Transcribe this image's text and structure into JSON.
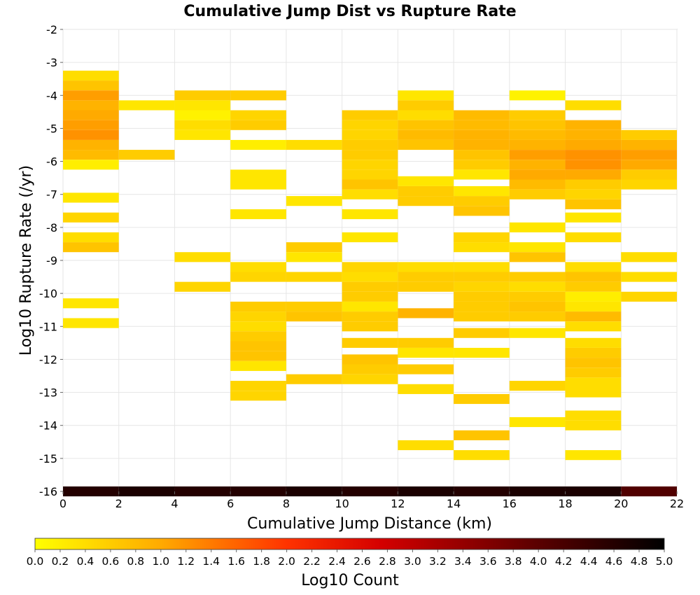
{
  "chart_data": {
    "type": "heatmap",
    "title": "Cumulative Jump Dist vs Rupture Rate",
    "xlabel": "Cumulative Jump Distance (km)",
    "ylabel": "Log10 Rupture Rate (/yr)",
    "xlim": [
      0,
      22
    ],
    "ylim": [
      -16,
      -2
    ],
    "x_ticks": [
      "0",
      "2",
      "4",
      "6",
      "8",
      "10",
      "12",
      "14",
      "16",
      "18",
      "20",
      "22"
    ],
    "y_ticks": [
      "-2",
      "-3",
      "-4",
      "-5",
      "-6",
      "-7",
      "-8",
      "-9",
      "-10",
      "-11",
      "-12",
      "-13",
      "-14",
      "-15",
      "-16"
    ],
    "x_bin_width": 2,
    "y_bin_height": 0.3,
    "grid": true,
    "colorbar": {
      "label": "Log10 Count",
      "range": [
        0,
        5
      ],
      "ticks": [
        "0.0",
        "0.2",
        "0.4",
        "0.6",
        "0.8",
        "1.0",
        "1.2",
        "1.4",
        "1.6",
        "1.8",
        "2.0",
        "2.2",
        "2.4",
        "2.6",
        "2.8",
        "3.0",
        "3.2",
        "3.4",
        "3.6",
        "3.8",
        "4.0",
        "4.2",
        "4.4",
        "4.6",
        "4.8",
        "5.0"
      ],
      "colors": [
        "#ffff00",
        "#ffaa00",
        "#ff3300",
        "#d40000",
        "#5a0000",
        "#000000"
      ]
    },
    "cells": [
      {
        "x": 0,
        "y": -3.4,
        "v": 0.4
      },
      {
        "x": 0,
        "y": -3.7,
        "v": 0.7
      },
      {
        "x": 0,
        "y": -4.0,
        "v": 1.1
      },
      {
        "x": 0,
        "y": -4.3,
        "v": 0.9
      },
      {
        "x": 0,
        "y": -4.6,
        "v": 1.0
      },
      {
        "x": 0,
        "y": -4.9,
        "v": 1.1
      },
      {
        "x": 0,
        "y": -5.2,
        "v": 1.2
      },
      {
        "x": 0,
        "y": -5.5,
        "v": 0.9
      },
      {
        "x": 0,
        "y": -5.8,
        "v": 0.8
      },
      {
        "x": 0,
        "y": -6.1,
        "v": 0.2
      },
      {
        "x": 0,
        "y": -7.1,
        "v": 0.3
      },
      {
        "x": 0,
        "y": -7.7,
        "v": 0.5
      },
      {
        "x": 0,
        "y": -8.3,
        "v": 0.4
      },
      {
        "x": 0,
        "y": -8.6,
        "v": 0.7
      },
      {
        "x": 0,
        "y": -10.3,
        "v": 0.3
      },
      {
        "x": 0,
        "y": -10.9,
        "v": 0.3
      },
      {
        "x": 2,
        "y": -4.3,
        "v": 0.3
      },
      {
        "x": 2,
        "y": -5.8,
        "v": 0.6
      },
      {
        "x": 4,
        "y": -4.0,
        "v": 0.6
      },
      {
        "x": 4,
        "y": -4.3,
        "v": 0.3
      },
      {
        "x": 4,
        "y": -4.6,
        "v": 0.15
      },
      {
        "x": 4,
        "y": -4.9,
        "v": 0.4
      },
      {
        "x": 4,
        "y": -5.2,
        "v": 0.3
      },
      {
        "x": 4,
        "y": -8.9,
        "v": 0.4
      },
      {
        "x": 4,
        "y": -9.8,
        "v": 0.5
      },
      {
        "x": 6,
        "y": -4.0,
        "v": 0.6
      },
      {
        "x": 6,
        "y": -4.6,
        "v": 0.5
      },
      {
        "x": 6,
        "y": -4.9,
        "v": 0.6
      },
      {
        "x": 6,
        "y": -5.5,
        "v": 0.2
      },
      {
        "x": 6,
        "y": -6.4,
        "v": 0.3
      },
      {
        "x": 6,
        "y": -6.7,
        "v": 0.3
      },
      {
        "x": 6,
        "y": -7.6,
        "v": 0.3
      },
      {
        "x": 6,
        "y": -9.2,
        "v": 0.4
      },
      {
        "x": 6,
        "y": -9.5,
        "v": 0.5
      },
      {
        "x": 6,
        "y": -10.4,
        "v": 0.6
      },
      {
        "x": 6,
        "y": -10.7,
        "v": 0.5
      },
      {
        "x": 6,
        "y": -11.0,
        "v": 0.4
      },
      {
        "x": 6,
        "y": -11.3,
        "v": 0.6
      },
      {
        "x": 6,
        "y": -11.6,
        "v": 0.7
      },
      {
        "x": 6,
        "y": -11.9,
        "v": 0.7
      },
      {
        "x": 6,
        "y": -12.2,
        "v": 0.3
      },
      {
        "x": 6,
        "y": -12.8,
        "v": 0.5
      },
      {
        "x": 6,
        "y": -13.1,
        "v": 0.5
      },
      {
        "x": 8,
        "y": -5.5,
        "v": 0.4
      },
      {
        "x": 8,
        "y": -7.2,
        "v": 0.3
      },
      {
        "x": 8,
        "y": -8.6,
        "v": 0.6
      },
      {
        "x": 8,
        "y": -8.9,
        "v": 0.3
      },
      {
        "x": 8,
        "y": -9.5,
        "v": 0.5
      },
      {
        "x": 8,
        "y": -10.4,
        "v": 0.6
      },
      {
        "x": 8,
        "y": -10.7,
        "v": 0.7
      },
      {
        "x": 8,
        "y": -12.6,
        "v": 0.6
      },
      {
        "x": 10,
        "y": -4.6,
        "v": 0.6
      },
      {
        "x": 10,
        "y": -4.9,
        "v": 0.5
      },
      {
        "x": 10,
        "y": -5.2,
        "v": 0.5
      },
      {
        "x": 10,
        "y": -5.5,
        "v": 0.6
      },
      {
        "x": 10,
        "y": -5.8,
        "v": 0.6
      },
      {
        "x": 10,
        "y": -6.1,
        "v": 0.5
      },
      {
        "x": 10,
        "y": -6.4,
        "v": 0.5
      },
      {
        "x": 10,
        "y": -6.7,
        "v": 0.7
      },
      {
        "x": 10,
        "y": -7.0,
        "v": 0.4
      },
      {
        "x": 10,
        "y": -7.6,
        "v": 0.3
      },
      {
        "x": 10,
        "y": -8.3,
        "v": 0.3
      },
      {
        "x": 10,
        "y": -9.2,
        "v": 0.5
      },
      {
        "x": 10,
        "y": -9.5,
        "v": 0.4
      },
      {
        "x": 10,
        "y": -9.8,
        "v": 0.6
      },
      {
        "x": 10,
        "y": -10.1,
        "v": 0.6
      },
      {
        "x": 10,
        "y": -10.4,
        "v": 0.3
      },
      {
        "x": 10,
        "y": -10.7,
        "v": 0.6
      },
      {
        "x": 10,
        "y": -11.0,
        "v": 0.6
      },
      {
        "x": 10,
        "y": -11.5,
        "v": 0.6
      },
      {
        "x": 10,
        "y": -12.0,
        "v": 0.7
      },
      {
        "x": 10,
        "y": -12.3,
        "v": 0.6
      },
      {
        "x": 10,
        "y": -12.6,
        "v": 0.5
      },
      {
        "x": 12,
        "y": -4.0,
        "v": 0.3
      },
      {
        "x": 12,
        "y": -4.3,
        "v": 0.6
      },
      {
        "x": 12,
        "y": -4.6,
        "v": 0.4
      },
      {
        "x": 12,
        "y": -4.9,
        "v": 0.7
      },
      {
        "x": 12,
        "y": -5.2,
        "v": 0.8
      },
      {
        "x": 12,
        "y": -5.5,
        "v": 0.7
      },
      {
        "x": 12,
        "y": -6.6,
        "v": 0.3
      },
      {
        "x": 12,
        "y": -6.9,
        "v": 0.6
      },
      {
        "x": 12,
        "y": -7.2,
        "v": 0.6
      },
      {
        "x": 12,
        "y": -9.2,
        "v": 0.4
      },
      {
        "x": 12,
        "y": -9.5,
        "v": 0.6
      },
      {
        "x": 12,
        "y": -9.8,
        "v": 0.6
      },
      {
        "x": 12,
        "y": -10.6,
        "v": 0.9
      },
      {
        "x": 12,
        "y": -11.5,
        "v": 0.6
      },
      {
        "x": 12,
        "y": -11.8,
        "v": 0.3
      },
      {
        "x": 12,
        "y": -12.3,
        "v": 0.6
      },
      {
        "x": 12,
        "y": -12.9,
        "v": 0.4
      },
      {
        "x": 12,
        "y": -14.6,
        "v": 0.4
      },
      {
        "x": 14,
        "y": -4.6,
        "v": 0.8
      },
      {
        "x": 14,
        "y": -4.9,
        "v": 0.8
      },
      {
        "x": 14,
        "y": -5.2,
        "v": 0.9
      },
      {
        "x": 14,
        "y": -5.5,
        "v": 0.9
      },
      {
        "x": 14,
        "y": -5.8,
        "v": 0.7
      },
      {
        "x": 14,
        "y": -6.1,
        "v": 0.6
      },
      {
        "x": 14,
        "y": -6.4,
        "v": 0.3
      },
      {
        "x": 14,
        "y": -6.9,
        "v": 0.3
      },
      {
        "x": 14,
        "y": -7.2,
        "v": 0.6
      },
      {
        "x": 14,
        "y": -7.5,
        "v": 0.7
      },
      {
        "x": 14,
        "y": -8.3,
        "v": 0.5
      },
      {
        "x": 14,
        "y": -8.6,
        "v": 0.4
      },
      {
        "x": 14,
        "y": -9.2,
        "v": 0.4
      },
      {
        "x": 14,
        "y": -9.5,
        "v": 0.6
      },
      {
        "x": 14,
        "y": -9.8,
        "v": 0.5
      },
      {
        "x": 14,
        "y": -10.1,
        "v": 0.6
      },
      {
        "x": 14,
        "y": -10.4,
        "v": 0.6
      },
      {
        "x": 14,
        "y": -10.7,
        "v": 0.6
      },
      {
        "x": 14,
        "y": -11.2,
        "v": 0.6
      },
      {
        "x": 14,
        "y": -11.8,
        "v": 0.3
      },
      {
        "x": 14,
        "y": -13.2,
        "v": 0.6
      },
      {
        "x": 14,
        "y": -14.3,
        "v": 0.7
      },
      {
        "x": 14,
        "y": -14.9,
        "v": 0.4
      },
      {
        "x": 16,
        "y": -4.0,
        "v": 0.15
      },
      {
        "x": 16,
        "y": -4.6,
        "v": 0.6
      },
      {
        "x": 16,
        "y": -4.9,
        "v": 0.7
      },
      {
        "x": 16,
        "y": -5.2,
        "v": 0.8
      },
      {
        "x": 16,
        "y": -5.5,
        "v": 0.9
      },
      {
        "x": 16,
        "y": -5.8,
        "v": 1.1
      },
      {
        "x": 16,
        "y": -6.1,
        "v": 0.9
      },
      {
        "x": 16,
        "y": -6.4,
        "v": 1.0
      },
      {
        "x": 16,
        "y": -6.7,
        "v": 0.8
      },
      {
        "x": 16,
        "y": -7.0,
        "v": 0.6
      },
      {
        "x": 16,
        "y": -8.0,
        "v": 0.3
      },
      {
        "x": 16,
        "y": -8.6,
        "v": 0.3
      },
      {
        "x": 16,
        "y": -8.9,
        "v": 0.7
      },
      {
        "x": 16,
        "y": -9.5,
        "v": 0.6
      },
      {
        "x": 16,
        "y": -9.8,
        "v": 0.4
      },
      {
        "x": 16,
        "y": -10.1,
        "v": 0.6
      },
      {
        "x": 16,
        "y": -10.4,
        "v": 0.7
      },
      {
        "x": 16,
        "y": -10.7,
        "v": 0.6
      },
      {
        "x": 16,
        "y": -11.2,
        "v": 0.3
      },
      {
        "x": 16,
        "y": -12.8,
        "v": 0.5
      },
      {
        "x": 16,
        "y": -13.9,
        "v": 0.3
      },
      {
        "x": 18,
        "y": -4.3,
        "v": 0.4
      },
      {
        "x": 18,
        "y": -4.9,
        "v": 0.9
      },
      {
        "x": 18,
        "y": -5.2,
        "v": 0.9
      },
      {
        "x": 18,
        "y": -5.5,
        "v": 1.0
      },
      {
        "x": 18,
        "y": -5.8,
        "v": 1.2
      },
      {
        "x": 18,
        "y": -6.1,
        "v": 1.2
      },
      {
        "x": 18,
        "y": -6.4,
        "v": 1.0
      },
      {
        "x": 18,
        "y": -6.7,
        "v": 0.6
      },
      {
        "x": 18,
        "y": -7.0,
        "v": 0.5
      },
      {
        "x": 18,
        "y": -7.3,
        "v": 0.7
      },
      {
        "x": 18,
        "y": -7.7,
        "v": 0.3
      },
      {
        "x": 18,
        "y": -8.3,
        "v": 0.4
      },
      {
        "x": 18,
        "y": -9.2,
        "v": 0.4
      },
      {
        "x": 18,
        "y": -9.5,
        "v": 0.7
      },
      {
        "x": 18,
        "y": -9.8,
        "v": 0.6
      },
      {
        "x": 18,
        "y": -10.1,
        "v": 0.2
      },
      {
        "x": 18,
        "y": -10.4,
        "v": 0.3
      },
      {
        "x": 18,
        "y": -10.7,
        "v": 0.8
      },
      {
        "x": 18,
        "y": -11.0,
        "v": 0.4
      },
      {
        "x": 18,
        "y": -11.5,
        "v": 0.4
      },
      {
        "x": 18,
        "y": -11.8,
        "v": 0.6
      },
      {
        "x": 18,
        "y": -12.1,
        "v": 0.7
      },
      {
        "x": 18,
        "y": -12.4,
        "v": 0.6
      },
      {
        "x": 18,
        "y": -12.7,
        "v": 0.4
      },
      {
        "x": 18,
        "y": -13.0,
        "v": 0.4
      },
      {
        "x": 18,
        "y": -13.7,
        "v": 0.4
      },
      {
        "x": 18,
        "y": -14.0,
        "v": 0.4
      },
      {
        "x": 18,
        "y": -14.9,
        "v": 0.3
      },
      {
        "x": 20,
        "y": -5.2,
        "v": 0.6
      },
      {
        "x": 20,
        "y": -5.5,
        "v": 0.9
      },
      {
        "x": 20,
        "y": -5.8,
        "v": 1.1
      },
      {
        "x": 20,
        "y": -6.1,
        "v": 1.0
      },
      {
        "x": 20,
        "y": -6.4,
        "v": 0.6
      },
      {
        "x": 20,
        "y": -6.7,
        "v": 0.5
      },
      {
        "x": 20,
        "y": -8.9,
        "v": 0.4
      },
      {
        "x": 20,
        "y": -9.5,
        "v": 0.4
      },
      {
        "x": 20,
        "y": -10.1,
        "v": 0.5
      },
      {
        "x": 0,
        "y": -16.0,
        "v": 4.6
      },
      {
        "x": 2,
        "y": -16.0,
        "v": 4.7
      },
      {
        "x": 4,
        "y": -16.0,
        "v": 4.6
      },
      {
        "x": 6,
        "y": -16.0,
        "v": 4.6
      },
      {
        "x": 8,
        "y": -16.0,
        "v": 4.7
      },
      {
        "x": 10,
        "y": -16.0,
        "v": 4.6
      },
      {
        "x": 12,
        "y": -16.0,
        "v": 4.7
      },
      {
        "x": 14,
        "y": -16.0,
        "v": 4.6
      },
      {
        "x": 16,
        "y": -16.0,
        "v": 4.7
      },
      {
        "x": 18,
        "y": -16.0,
        "v": 4.7
      },
      {
        "x": 20,
        "y": -16.0,
        "v": 4.1
      }
    ]
  }
}
